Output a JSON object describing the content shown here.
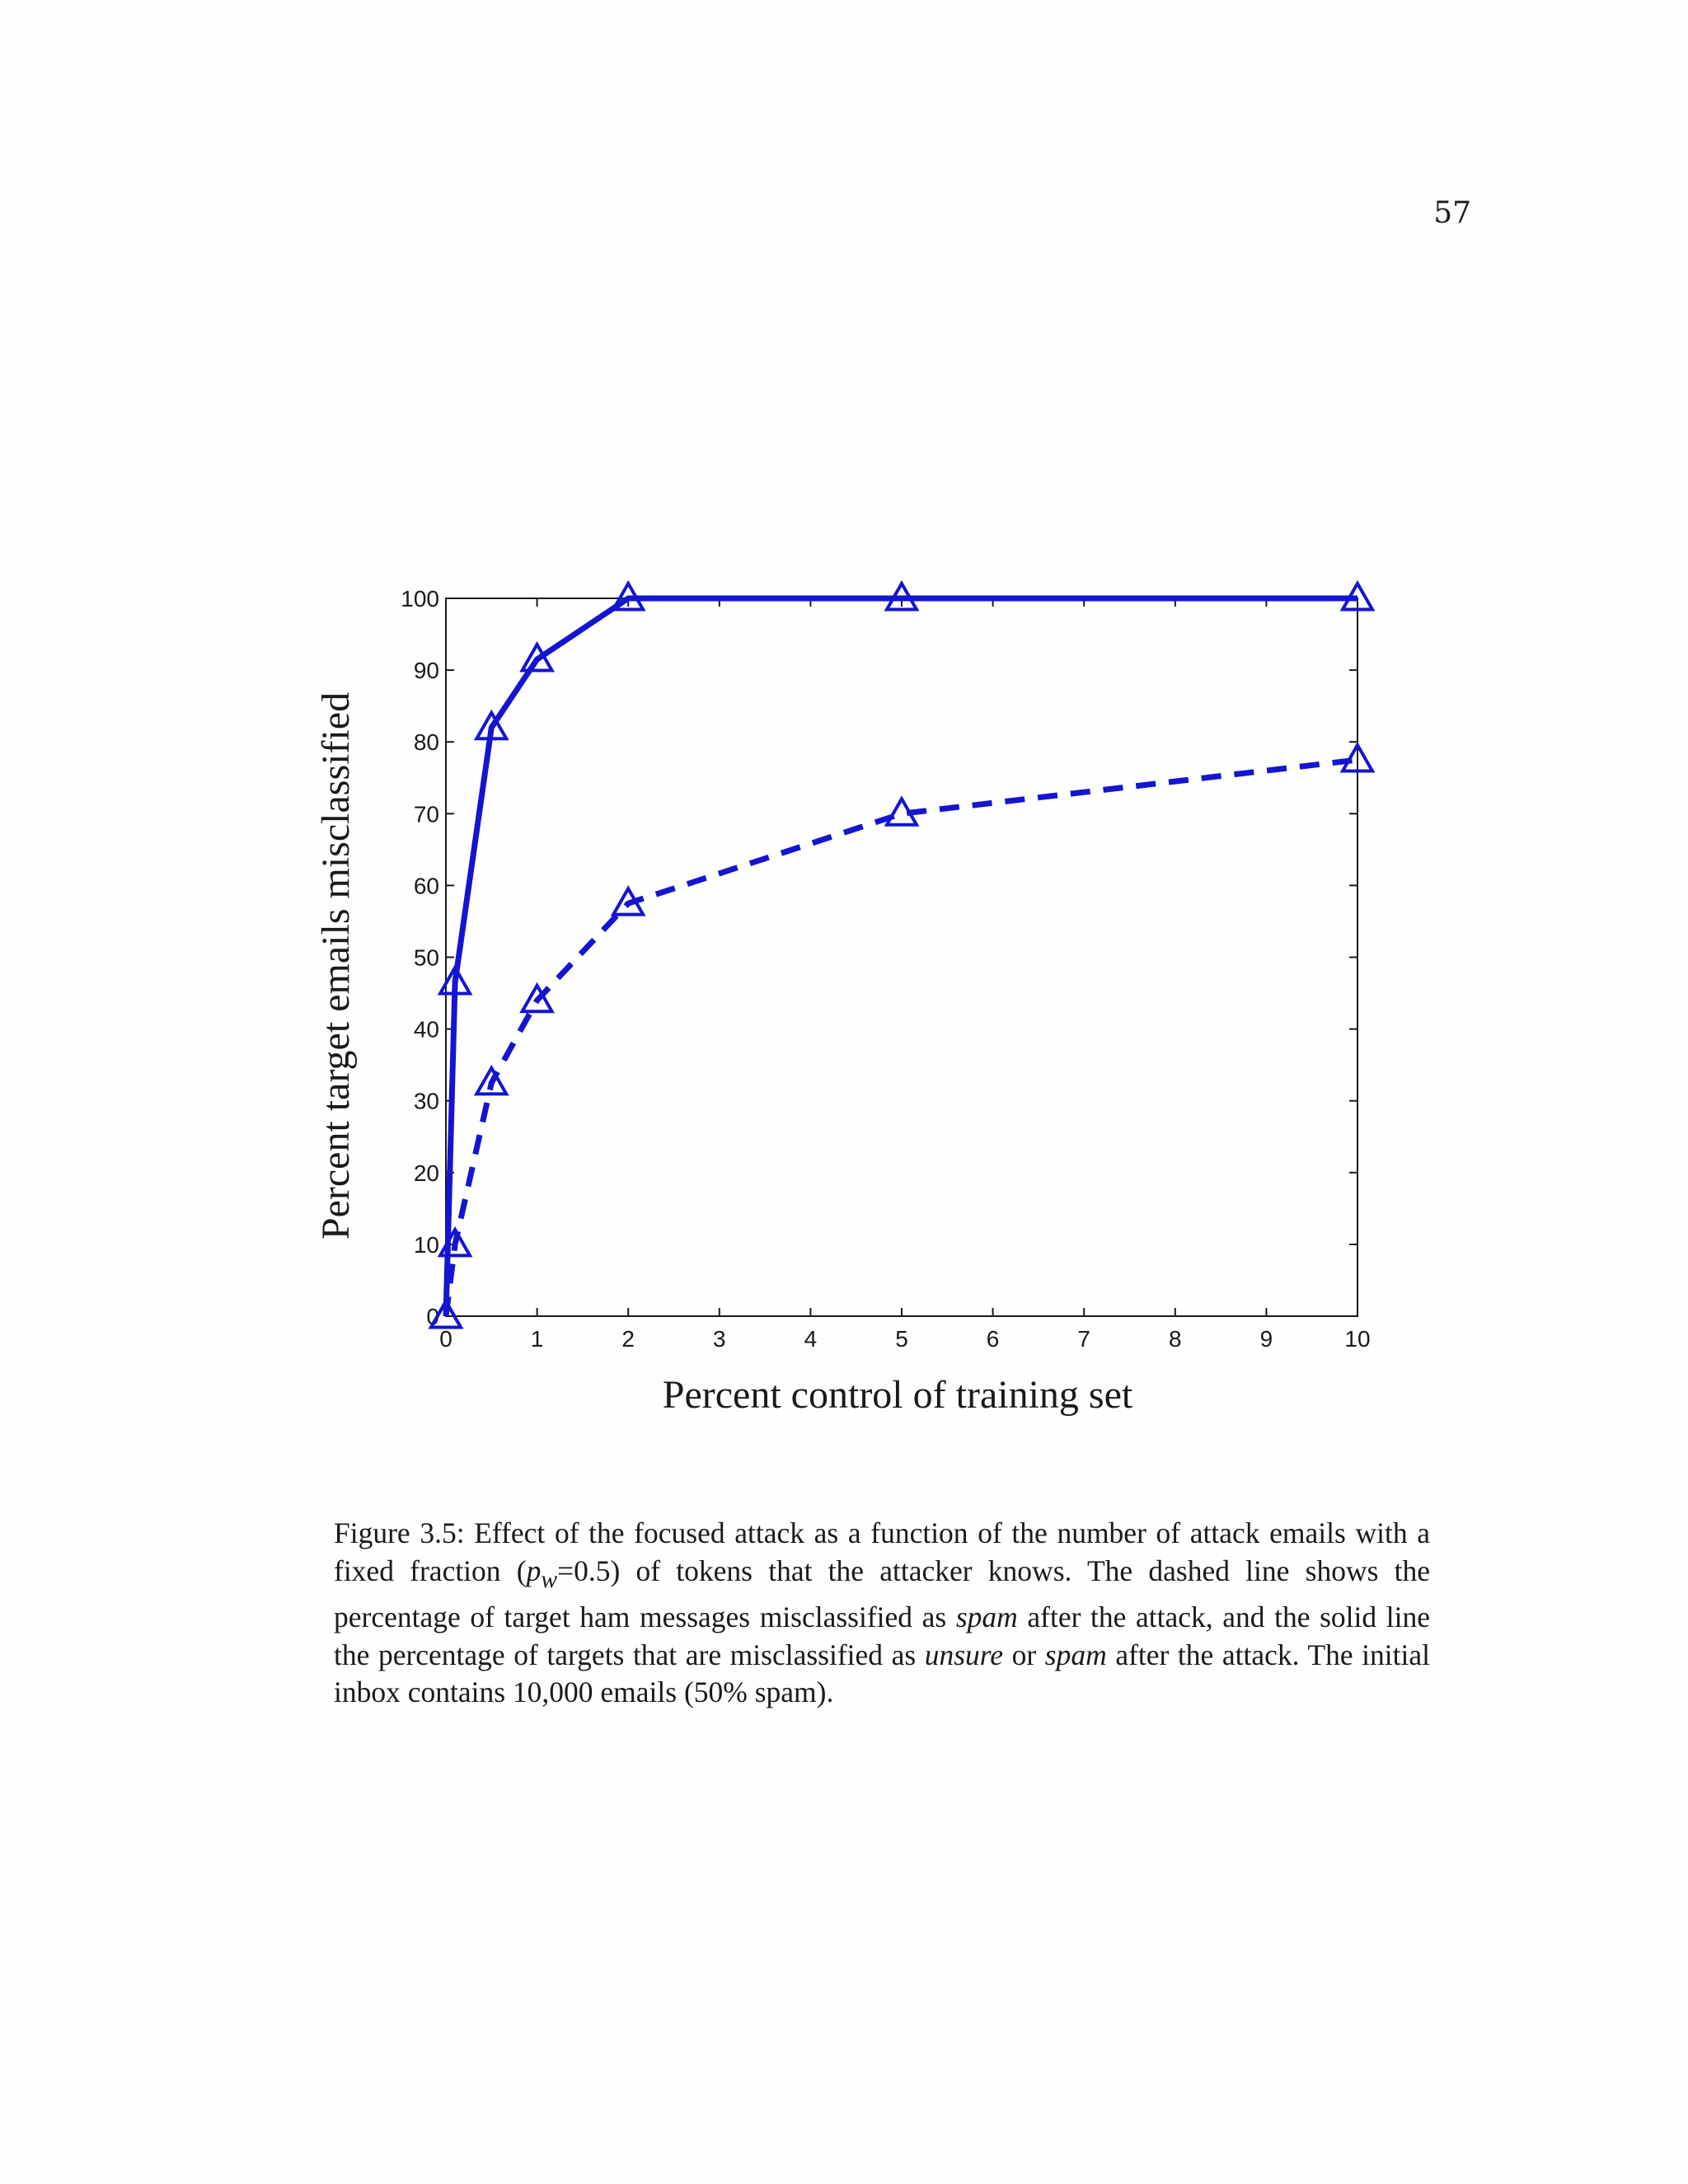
{
  "page_number": "57",
  "caption": {
    "label": "Figure 3.5:",
    "part1": "Effect of the focused attack as a function of the number of attack emails with a fixed fraction (",
    "math_var": "p",
    "math_sub": "w",
    "part2": "=0.5) of tokens that the attacker knows. The dashed line shows the percentage of target ham messages misclassified as ",
    "em1": "spam",
    "part3": " after the attack, and the solid line the percentage of targets that are misclassified as ",
    "em2": "unsure",
    "part4": " or ",
    "em3": "spam",
    "part5": " after the attack. The initial inbox contains 10,000 emails (50% spam)."
  },
  "chart_data": {
    "type": "line",
    "xlabel": "Percent control of training set",
    "ylabel": "Percent target emails misclassified",
    "xlim": [
      0,
      10
    ],
    "ylim": [
      0,
      100
    ],
    "xticks": [
      0,
      1,
      2,
      3,
      4,
      5,
      6,
      7,
      8,
      9,
      10
    ],
    "yticks": [
      0,
      10,
      20,
      30,
      40,
      50,
      60,
      70,
      80,
      90,
      100
    ],
    "grid": false,
    "legend": "none",
    "marker": "triangle",
    "color": "#1414d2",
    "series": [
      {
        "style": "solid",
        "x": [
          0,
          0.1,
          0.5,
          1,
          2,
          5,
          10
        ],
        "y": [
          0,
          46.5,
          82,
          91.5,
          100,
          100,
          100
        ]
      },
      {
        "style": "dashed",
        "x": [
          0,
          0.1,
          0.5,
          1,
          2,
          5,
          10
        ],
        "y": [
          0,
          10,
          32.5,
          44,
          57.5,
          70,
          77.5
        ]
      }
    ]
  }
}
